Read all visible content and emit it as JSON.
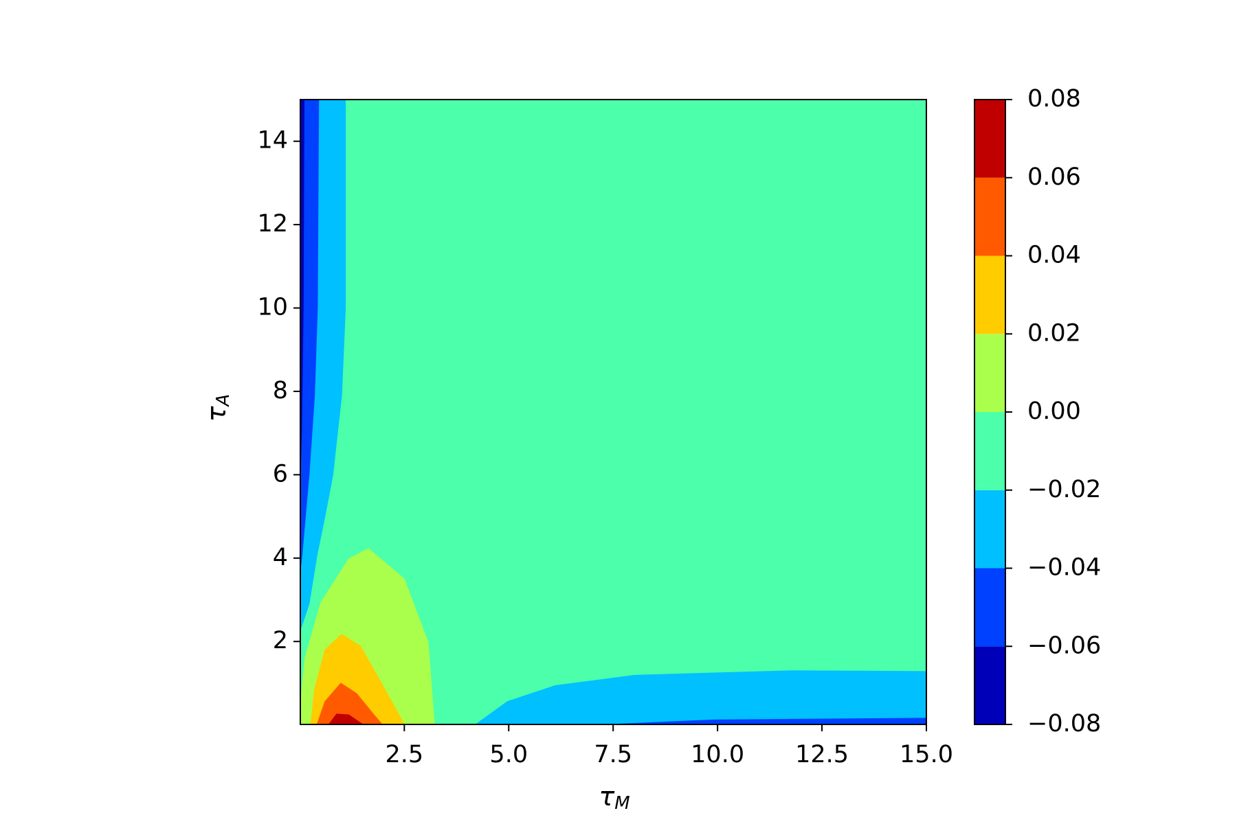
{
  "chart_data": {
    "type": "contourf",
    "xlabel": {
      "base": "τ",
      "sub": "M"
    },
    "ylabel": {
      "base": "τ",
      "sub": "A"
    },
    "xlim": [
      0.01,
      15
    ],
    "ylim": [
      0.01,
      15
    ],
    "xticks": [
      2.5,
      {
        "value": 5,
        "label": "5.0"
      },
      7.5,
      {
        "value": 10,
        "label": "10.0"
      },
      12.5,
      {
        "value": 15,
        "label": "15.0"
      }
    ],
    "yticks": [
      2,
      4,
      6,
      8,
      10,
      12,
      14
    ],
    "colorbar": {
      "levels": [
        {
          "value": -0.08,
          "label": "−0.08"
        },
        {
          "value": -0.06,
          "label": "−0.06"
        },
        {
          "value": -0.04,
          "label": "−0.04"
        },
        {
          "value": -0.02,
          "label": "−0.02"
        },
        {
          "value": 0,
          "label": "0.00"
        },
        0.02,
        0.04,
        0.06,
        0.08
      ],
      "colors": [
        "#0000b8",
        "#0040ff",
        "#00c0ff",
        "#4cffaa",
        "#aaff4c",
        "#ffcc00",
        "#ff5a00",
        "#c00000"
      ]
    },
    "regions": [
      {
        "level": -0.02,
        "x": [
          0.01,
          15,
          15,
          0.01
        ],
        "y": [
          15,
          15,
          0.01,
          0.01
        ]
      },
      {
        "level": -0.04,
        "x": [
          0.01,
          1.09,
          1.09,
          1.0,
          0.79,
          0.6,
          0.41,
          0.22,
          0.01
        ],
        "y": [
          15,
          15,
          10,
          7.9,
          6,
          5,
          4.07,
          2.9,
          2.27
        ]
      },
      {
        "level": -0.06,
        "x": [
          0.01,
          0.45,
          0.42,
          0.35,
          0.22,
          0.05,
          0.01
        ],
        "y": [
          15,
          15,
          10,
          7.9,
          6,
          4.07,
          3.7
        ]
      },
      {
        "level": -0.08,
        "x": [
          0.01,
          0.1,
          0.08,
          0.04,
          0.01
        ],
        "y": [
          15,
          15,
          10,
          7,
          6
        ]
      },
      {
        "level": 0,
        "x": [
          0.01,
          0.03,
          0.12,
          0.5,
          1.17,
          1.64,
          2.5,
          3.07,
          3.22
        ],
        "y": [
          0.01,
          0.65,
          1.6,
          2.93,
          3.98,
          4.23,
          3.5,
          1.98,
          0.01
        ]
      },
      {
        "level": 0.02,
        "x": [
          0.26,
          0.35,
          0.6,
          1.0,
          1.45,
          1.93,
          2.5
        ],
        "y": [
          0.01,
          0.85,
          1.8,
          2.17,
          1.89,
          1.04,
          0.01
        ]
      },
      {
        "level": 0.04,
        "x": [
          0.41,
          0.6,
          0.98,
          1.36,
          1.74,
          1.97
        ],
        "y": [
          0.01,
          0.56,
          1.0,
          0.75,
          0.28,
          0.01
        ]
      },
      {
        "level": 0.06,
        "x": [
          0.69,
          0.88,
          1.17,
          1.51
        ],
        "y": [
          0.01,
          0.26,
          0.24,
          0.01
        ]
      },
      {
        "level": -0.04,
        "x": [
          4.21,
          4.97,
          6.11,
          8.01,
          11.8,
          15,
          15
        ],
        "y": [
          0.01,
          0.56,
          0.94,
          1.19,
          1.3,
          1.28,
          0.01
        ]
      },
      {
        "level": -0.06,
        "x": [
          7.44,
          9.91,
          15,
          15
        ],
        "y": [
          0.01,
          0.12,
          0.16,
          0.01
        ]
      }
    ]
  }
}
